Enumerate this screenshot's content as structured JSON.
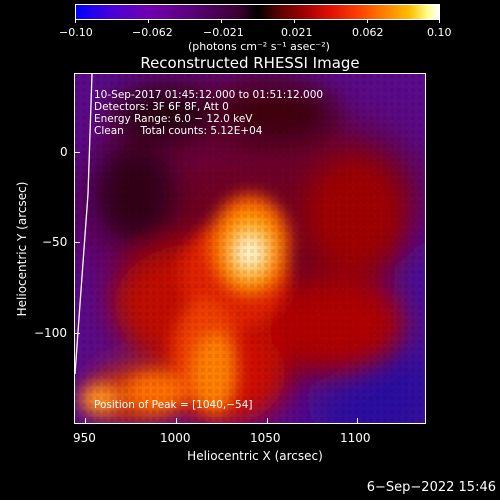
{
  "colorbar": {
    "tick_labels": [
      "−0.10",
      "−0.062",
      "−0.021",
      "0.021",
      "0.062",
      "0.10"
    ],
    "unit_label": "(photons cm⁻² s⁻¹ asec⁻²)"
  },
  "plot": {
    "title": "Reconstructed RHESSI Image",
    "xlabel": "Heliocentric X (arcsec)",
    "ylabel": "Heliocentric Y (arcsec)",
    "x_ticks": [
      "950",
      "1000",
      "1050",
      "1100"
    ],
    "y_ticks": [
      "0",
      "−50",
      "−100"
    ],
    "annotations": [
      "10-Sep-2017 01:45:12.000 to 01:51:12.000",
      "Detectors: 3F 6F 8F, Att 0",
      "Energy Range: 6.0 − 12.0 keV",
      "Clean     Total counts: 5.12E+04"
    ],
    "peak_label": "Position of Peak = [1040,−54]"
  },
  "footer": {
    "timestamp": "6−Sep−2022 15:46"
  }
}
